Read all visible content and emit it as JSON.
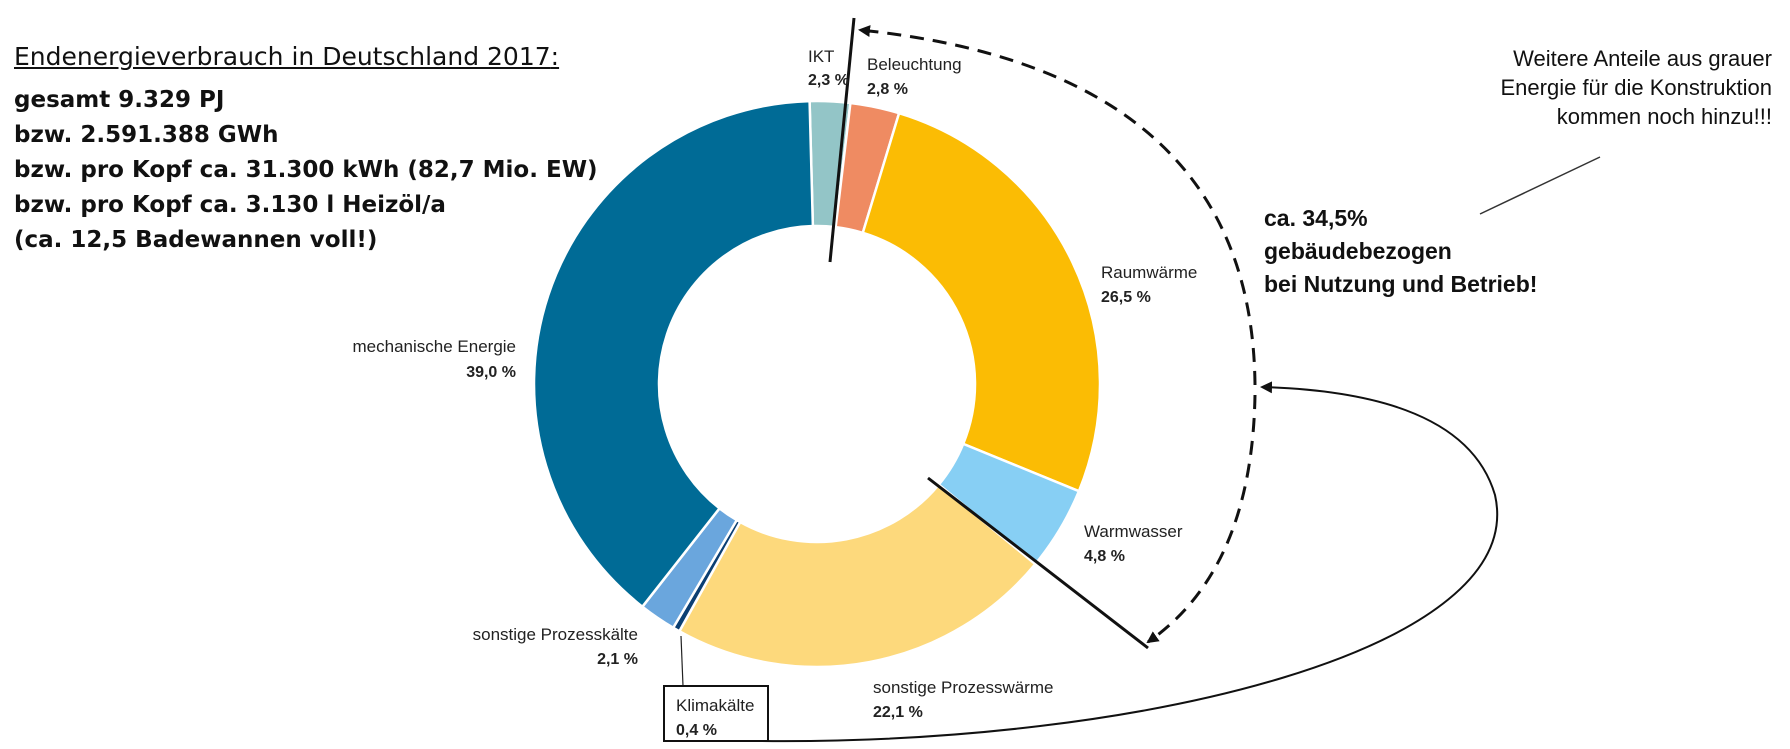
{
  "info": {
    "title": "Endenergieverbrauch in Deutschland 2017",
    "title_suffix": ":",
    "lines": [
      "gesamt 9.329 PJ",
      "bzw. 2.591.388 GWh",
      "bzw. pro Kopf ca. 31.300 kWh (82,7 Mio. EW)",
      "bzw. pro Kopf ca. 3.130 l Heizöl/a",
      "(ca. 12,5 Badewannen voll!)"
    ]
  },
  "notes": {
    "grey_energy": [
      "Weitere Anteile aus grauer",
      "Energie für die Konstruktion",
      "kommen noch hinzu!!!"
    ],
    "building": [
      "ca. 34,5%",
      "gebäudebezogen",
      "bei Nutzung und Betrieb!"
    ]
  },
  "chart_data": {
    "type": "pie",
    "style": "donut",
    "title": "",
    "slices": [
      {
        "label": "IKT",
        "pct_text": "2,3 %",
        "value": 2.3,
        "color": "#93c5c7"
      },
      {
        "label": "Beleuchtung",
        "pct_text": "2,8 %",
        "value": 2.8,
        "color": "#ef8b62"
      },
      {
        "label": "Raumwärme",
        "pct_text": "26,5 %",
        "value": 26.5,
        "color": "#fbbc04"
      },
      {
        "label": "Warmwasser",
        "pct_text": "4,8 %",
        "value": 4.8,
        "color": "#87cff4"
      },
      {
        "label": "sonstige Prozesswärme",
        "pct_text": "22,1 %",
        "value": 22.1,
        "color": "#fdd97c"
      },
      {
        "label": "Klimakälte",
        "pct_text": "0,4 %",
        "value": 0.4,
        "color": "#0b3f73"
      },
      {
        "label": "sonstige Prozesskälte",
        "pct_text": "2,1 %",
        "value": 2.1,
        "color": "#6aa6dd"
      },
      {
        "label": "mechanische Energie",
        "pct_text": "39,0 %",
        "value": 39.0,
        "color": "#006b96"
      }
    ]
  }
}
